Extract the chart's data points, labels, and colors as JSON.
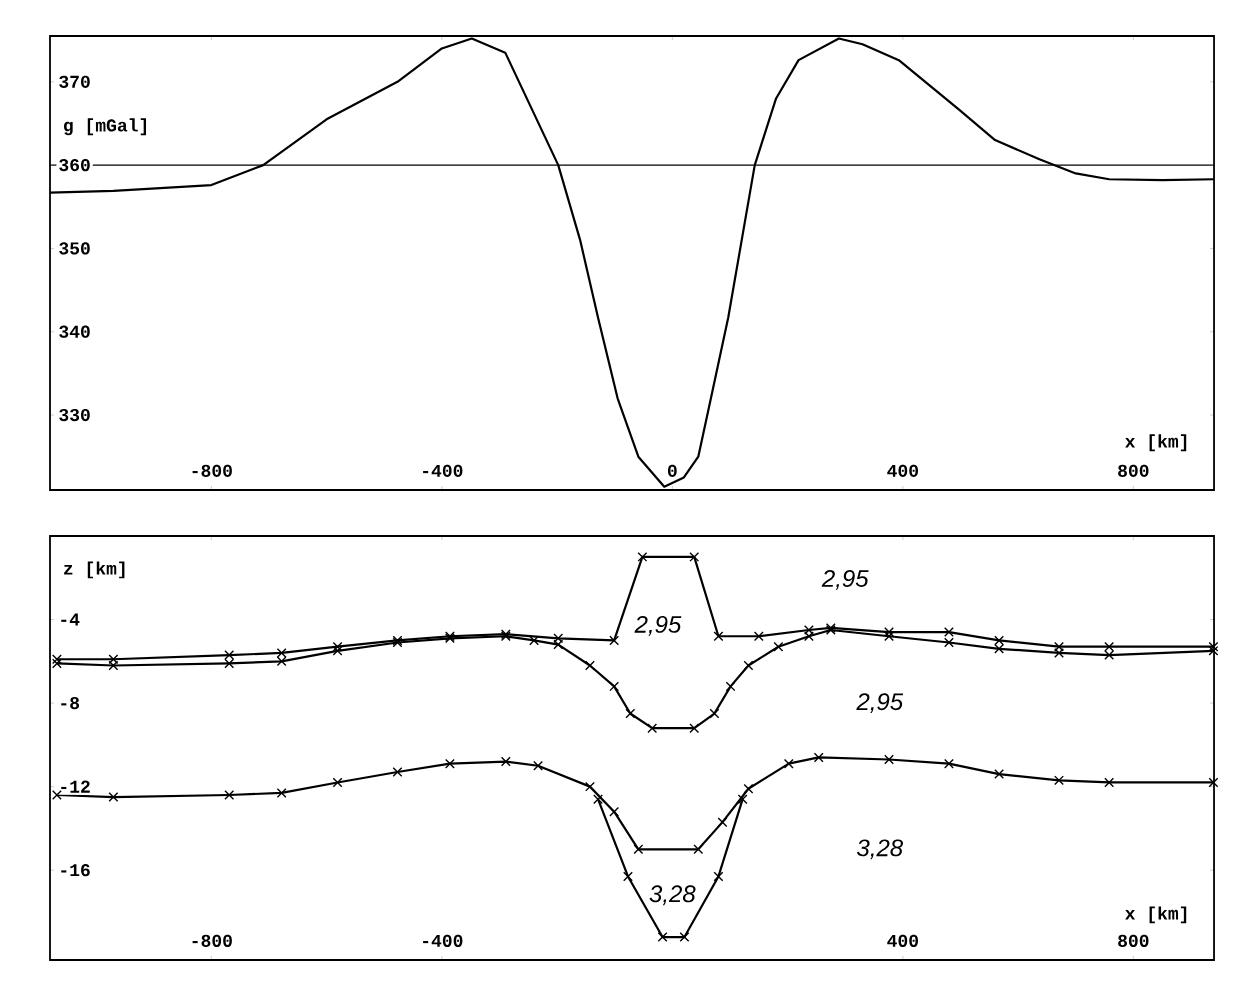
{
  "chart_data": [
    {
      "type": "line",
      "ylabel": "g [mGal]",
      "xlabel": "x [km]",
      "xlim": [
        -1080,
        940
      ],
      "ylim": [
        321,
        375.5
      ],
      "xticks": [
        -800,
        -400,
        0,
        400,
        800
      ],
      "yticks": [
        330,
        340,
        350,
        360,
        370
      ],
      "marker": "none",
      "ref_lines": [
        {
          "axis": "y",
          "value": 360,
          "color": "#000000"
        }
      ],
      "series": [
        {
          "color": "#000000",
          "x": [
            -1080,
            -970,
            -800,
            -710,
            -600,
            -477,
            -400,
            -348,
            -290,
            -198,
            -160,
            -129,
            -95,
            -59,
            -14,
            20,
            45,
            70,
            97,
            143,
            180,
            219,
            289,
            330,
            393,
            497,
            560,
            637,
            700,
            758,
            850,
            940
          ],
          "values": [
            356.7,
            356.9,
            357.6,
            360,
            365.5,
            370,
            374,
            375.2,
            373.5,
            360,
            351,
            341.7,
            332,
            325,
            321.4,
            322.5,
            325,
            333,
            341.7,
            360,
            368,
            372.6,
            375.2,
            374.5,
            372.6,
            366.7,
            363,
            360.7,
            359,
            358.3,
            358.2,
            358.3
          ]
        }
      ]
    },
    {
      "type": "line",
      "ylabel": "z [km]",
      "xlabel": "x [km]",
      "xlim": [
        -1080,
        940
      ],
      "ylim": [
        -20.3,
        0
      ],
      "xticks": [
        -800,
        -400,
        400,
        800
      ],
      "yticks": [
        -4,
        -8,
        -12,
        -16
      ],
      "marker": "cross",
      "annotations": [
        {
          "text": "2,95",
          "x": 300,
          "y": -2.1
        },
        {
          "text": "2,95",
          "x": -25,
          "y": -4.3
        },
        {
          "text": "2,95",
          "x": 360,
          "y": -8
        },
        {
          "text": "3,28",
          "x": 360,
          "y": -15
        },
        {
          "text": "3,28",
          "x": 0,
          "y": -17.2
        }
      ],
      "series": [
        {
          "color": "#000000",
          "x": [
            -1068,
            -970,
            -769,
            -678,
            -581,
            -477,
            -386,
            -289,
            -198,
            -101,
            -52,
            38,
            80,
            150,
            237,
            275,
            376,
            480,
            567,
            671,
            758,
            939
          ],
          "values": [
            -5.9,
            -5.9,
            -5.7,
            -5.6,
            -5.3,
            -5.0,
            -4.8,
            -4.7,
            -4.9,
            -5.0,
            -1.0,
            -1.0,
            -4.8,
            -4.8,
            -4.5,
            -4.4,
            -4.6,
            -4.6,
            -5.0,
            -5.3,
            -5.3,
            -5.3
          ]
        },
        {
          "color": "#000000",
          "x": [
            -1068,
            -970,
            -769,
            -678,
            -581,
            -477,
            -386,
            -289,
            -240,
            -198,
            -143,
            -101,
            -73,
            -35,
            38,
            73,
            101,
            132,
            184,
            237,
            275,
            376,
            480,
            567,
            671,
            758,
            939
          ],
          "values": [
            -6.1,
            -6.2,
            -6.1,
            -6.0,
            -5.5,
            -5.1,
            -4.9,
            -4.8,
            -5.0,
            -5.2,
            -6.2,
            -7.2,
            -8.5,
            -9.2,
            -9.2,
            -8.5,
            -7.2,
            -6.2,
            -5.3,
            -4.8,
            -4.5,
            -4.8,
            -5.1,
            -5.4,
            -5.6,
            -5.7,
            -5.5
          ]
        },
        {
          "color": "#000000",
          "x": [
            -1068,
            -970,
            -769,
            -678,
            -581,
            -477,
            -386,
            -289,
            -233,
            -143,
            -101,
            -59,
            45,
            87,
            132,
            202,
            254,
            376,
            480,
            567,
            671,
            758,
            939
          ],
          "values": [
            -12.4,
            -12.5,
            -12.4,
            -12.3,
            -11.8,
            -11.3,
            -10.9,
            -10.8,
            -11.0,
            -12.0,
            -13.2,
            -15.0,
            -15.0,
            -13.7,
            -12.1,
            -10.9,
            -10.6,
            -10.7,
            -10.9,
            -11.4,
            -11.7,
            -11.8,
            -11.8
          ]
        },
        {
          "color": "#000000",
          "x": [
            -129,
            -77,
            -17,
            21,
            80,
            122
          ],
          "values": [
            -12.6,
            -16.3,
            -19.2,
            -19.2,
            -16.3,
            -12.6
          ]
        }
      ]
    }
  ]
}
